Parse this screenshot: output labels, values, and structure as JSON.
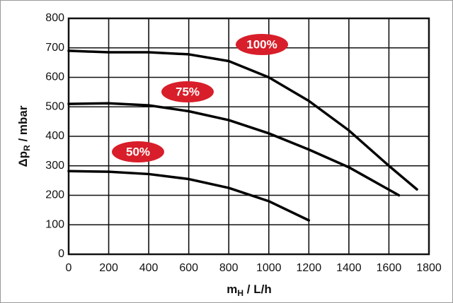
{
  "chart_data": {
    "type": "line",
    "x_label": {
      "main": "m",
      "sub": "H",
      "rest": " / L/h"
    },
    "y_label": {
      "main": "Δp",
      "sub": "R",
      "rest": "  / mbar"
    },
    "xlim": [
      0,
      1800
    ],
    "xticks": [
      0,
      200,
      400,
      600,
      800,
      1000,
      1200,
      1400,
      1600,
      1800
    ],
    "ylim": [
      0,
      800
    ],
    "yticks": [
      0,
      100,
      200,
      300,
      400,
      500,
      600,
      700,
      800
    ],
    "grid": true,
    "series": [
      {
        "name": "100%",
        "color": "#000000",
        "x": [
          0,
          200,
          400,
          600,
          800,
          1000,
          1200,
          1400,
          1600,
          1740
        ],
        "values": [
          690,
          685,
          685,
          678,
          655,
          600,
          520,
          420,
          300,
          220
        ]
      },
      {
        "name": "75%",
        "color": "#000000",
        "x": [
          0,
          200,
          400,
          600,
          800,
          1000,
          1200,
          1400,
          1650
        ],
        "values": [
          510,
          512,
          505,
          485,
          455,
          410,
          355,
          295,
          200
        ]
      },
      {
        "name": "50%",
        "color": "#000000",
        "x": [
          0,
          200,
          400,
          600,
          800,
          1000,
          1200
        ],
        "values": [
          282,
          280,
          272,
          255,
          225,
          180,
          115
        ]
      }
    ]
  }
}
